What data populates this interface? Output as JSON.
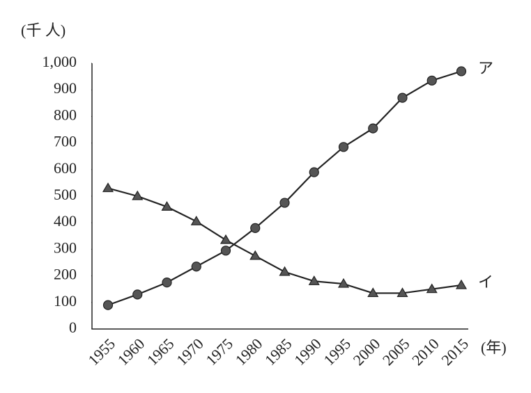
{
  "chart_data": {
    "type": "line",
    "y_label": "(千 人)",
    "x_label": "(年)",
    "categories": [
      "1955",
      "1960",
      "1965",
      "1970",
      "1975",
      "1980",
      "1985",
      "1990",
      "1995",
      "2000",
      "2005",
      "2010",
      "2015"
    ],
    "series": [
      {
        "name": "ア",
        "marker": "circle",
        "color": "#222222",
        "values": [
          90,
          130,
          175,
          235,
          295,
          380,
          475,
          590,
          685,
          755,
          870,
          935,
          970
        ]
      },
      {
        "name": "イ",
        "marker": "triangle",
        "color": "#222222",
        "values": [
          530,
          500,
          460,
          405,
          335,
          275,
          215,
          180,
          170,
          135,
          135,
          150,
          165
        ]
      }
    ],
    "ylim": [
      0,
      1000
    ],
    "yticks": [
      0,
      100,
      200,
      300,
      400,
      500,
      600,
      700,
      800,
      900,
      {
        "value": 1000,
        "label": "1,000"
      }
    ],
    "grid": false
  }
}
